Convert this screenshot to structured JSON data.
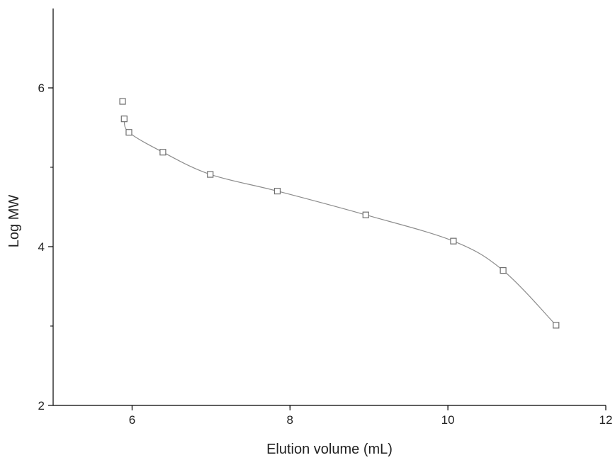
{
  "chart_data": {
    "type": "scatter",
    "title": "",
    "xlabel": "Elution volume (mL)",
    "ylabel": "Log MW",
    "xlim": [
      5,
      12
    ],
    "ylim": [
      2,
      7
    ],
    "x_ticks": [
      6,
      8,
      10,
      12
    ],
    "x_tick_labels": [
      "6",
      "8",
      "10",
      "12"
    ],
    "y_ticks": [
      2,
      4,
      6
    ],
    "y_tick_labels": [
      "2",
      "4",
      "6"
    ],
    "grid": false,
    "legend": "none",
    "marker": "hollow-square",
    "fit_line": "smooth curve",
    "colors": {
      "axis": "#000000",
      "line": "#8c8c8c",
      "marker": "#6e6e6e",
      "text": "#222222"
    },
    "series": [
      {
        "points": [
          {
            "x": 5.88,
            "y": 5.83
          },
          {
            "x": 5.9,
            "y": 5.61
          },
          {
            "x": 5.96,
            "y": 5.44
          },
          {
            "x": 6.39,
            "y": 5.19
          },
          {
            "x": 6.99,
            "y": 4.91
          },
          {
            "x": 7.84,
            "y": 4.7
          },
          {
            "x": 8.96,
            "y": 4.4
          },
          {
            "x": 10.07,
            "y": 4.07
          },
          {
            "x": 10.7,
            "y": 3.7
          },
          {
            "x": 11.37,
            "y": 3.01
          }
        ]
      }
    ]
  }
}
